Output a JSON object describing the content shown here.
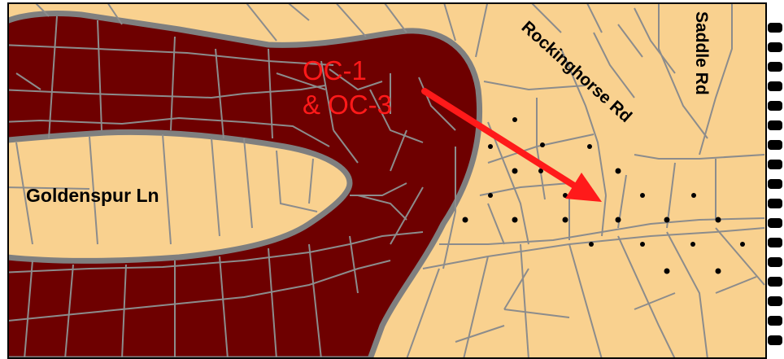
{
  "map": {
    "roads": {
      "goldenspur": "Goldenspur Ln",
      "rockinghorse": "Rockinghorse Rd",
      "saddle": "Saddle Rd"
    },
    "zone_label": {
      "line1": "OC-1",
      "line2": "& OC-3"
    },
    "colors": {
      "parcel_fill": "#F9D18F",
      "zone_fill": "#6E0000",
      "zone_outline": "#7F7F7F",
      "parcel_line": "#8C8C8C",
      "label_red": "#FF1A1A",
      "arrow": "#FF1A1A",
      "dots": "#000000"
    }
  }
}
